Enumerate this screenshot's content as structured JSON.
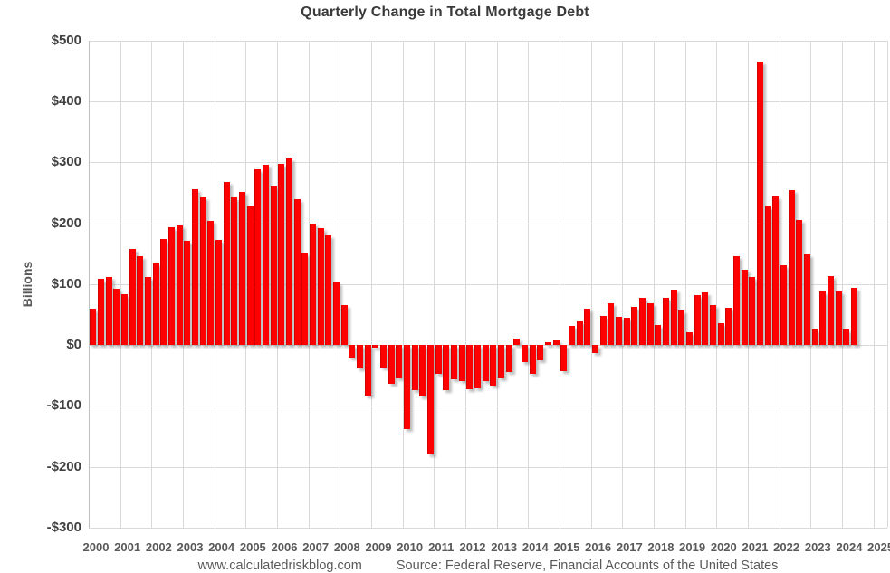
{
  "chart_data": {
    "type": "bar",
    "title": "Quarterly Change in Total Mortgage Debt",
    "ylabel": "Billions",
    "footer": {
      "site": "www.calculatedriskblog.com",
      "source": "Source: Federal Reserve, Financial Accounts of the United States"
    },
    "bar_color": "#fe0000",
    "grid_color": "#d9d9d9",
    "ylim": [
      -300,
      500
    ],
    "grid": true,
    "legend": "none",
    "y_ticks": [
      {
        "label": "$500",
        "value": 500
      },
      {
        "label": "$400",
        "value": 400
      },
      {
        "label": "$300",
        "value": 300
      },
      {
        "label": "$200",
        "value": 200
      },
      {
        "label": "$100",
        "value": 100
      },
      {
        "label": "$0",
        "value": 0
      },
      {
        "label": "-$100",
        "value": -100
      },
      {
        "label": "-$200",
        "value": -200
      },
      {
        "label": "-$300",
        "value": -300
      }
    ],
    "x_year_labels": [
      "2000",
      "2001",
      "2002",
      "2003",
      "2004",
      "2005",
      "2006",
      "2007",
      "2008",
      "2009",
      "2010",
      "2011",
      "2012",
      "2013",
      "2014",
      "2015",
      "2016",
      "2017",
      "2018",
      "2019",
      "2020",
      "2021",
      "2022",
      "2023",
      "2024",
      "2025"
    ],
    "categories": [
      "2000 Q1",
      "2000 Q2",
      "2000 Q3",
      "2000 Q4",
      "2001 Q1",
      "2001 Q2",
      "2001 Q3",
      "2001 Q4",
      "2002 Q1",
      "2002 Q2",
      "2002 Q3",
      "2002 Q4",
      "2003 Q1",
      "2003 Q2",
      "2003 Q3",
      "2003 Q4",
      "2004 Q1",
      "2004 Q2",
      "2004 Q3",
      "2004 Q4",
      "2005 Q1",
      "2005 Q2",
      "2005 Q3",
      "2005 Q4",
      "2006 Q1",
      "2006 Q2",
      "2006 Q3",
      "2006 Q4",
      "2007 Q1",
      "2007 Q2",
      "2007 Q3",
      "2007 Q4",
      "2008 Q1",
      "2008 Q2",
      "2008 Q3",
      "2008 Q4",
      "2009 Q1",
      "2009 Q2",
      "2009 Q3",
      "2009 Q4",
      "2010 Q1",
      "2010 Q2",
      "2010 Q3",
      "2010 Q4",
      "2011 Q1",
      "2011 Q2",
      "2011 Q3",
      "2011 Q4",
      "2012 Q1",
      "2012 Q2",
      "2012 Q3",
      "2012 Q4",
      "2013 Q1",
      "2013 Q2",
      "2013 Q3",
      "2013 Q4",
      "2014 Q1",
      "2014 Q2",
      "2014 Q3",
      "2014 Q4",
      "2015 Q1",
      "2015 Q2",
      "2015 Q3",
      "2015 Q4",
      "2016 Q1",
      "2016 Q2",
      "2016 Q3",
      "2016 Q4",
      "2017 Q1",
      "2017 Q2",
      "2017 Q3",
      "2017 Q4",
      "2018 Q1",
      "2018 Q2",
      "2018 Q3",
      "2018 Q4",
      "2019 Q1",
      "2019 Q2",
      "2019 Q3",
      "2019 Q4",
      "2020 Q1",
      "2020 Q2",
      "2020 Q3",
      "2020 Q4",
      "2021 Q1",
      "2021 Q2",
      "2021 Q3",
      "2021 Q4",
      "2022 Q1",
      "2022 Q2",
      "2022 Q3",
      "2022 Q4",
      "2023 Q1",
      "2023 Q2",
      "2023 Q3",
      "2023 Q4",
      "2024 Q1",
      "2024 Q2"
    ],
    "values": [
      59,
      109,
      112,
      92,
      83,
      157,
      146,
      112,
      134,
      174,
      193,
      196,
      171,
      256,
      243,
      204,
      172,
      268,
      242,
      252,
      227,
      289,
      296,
      260,
      297,
      307,
      239,
      150,
      200,
      192,
      180,
      102,
      66,
      -21,
      -38,
      -83,
      -5,
      -37,
      -64,
      -55,
      -139,
      -74,
      -85,
      -180,
      -48,
      -74,
      -57,
      -59,
      -73,
      -72,
      -59,
      -67,
      -55,
      -44,
      10,
      -28,
      -48,
      -25,
      4,
      8,
      -43,
      31,
      38,
      60,
      -13,
      48,
      69,
      46,
      44,
      62,
      78,
      69,
      33,
      77,
      90,
      57,
      21,
      82,
      86,
      66,
      36,
      61,
      145,
      124,
      112,
      465,
      227,
      244,
      131,
      254,
      205,
      148,
      26,
      87,
      113,
      88,
      26,
      94
    ]
  }
}
